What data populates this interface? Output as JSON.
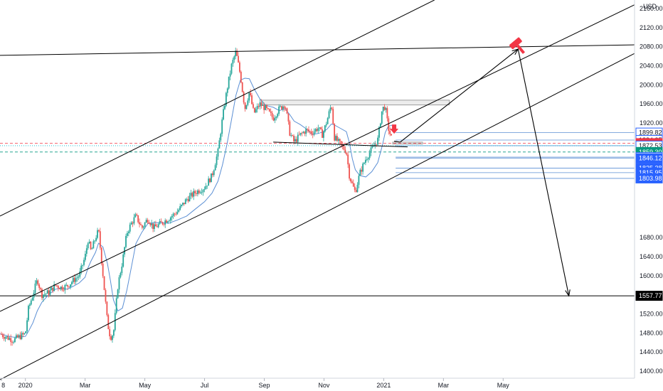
{
  "chart_data": {
    "type": "line",
    "currency_label": "USD",
    "y_ticks": [
      1400,
      1440,
      1480,
      1520,
      1557.77,
      1600,
      1640,
      1680,
      1720,
      1760,
      1800,
      1840,
      1880,
      1920,
      1960,
      2000,
      2040,
      2080,
      2120,
      2160
    ],
    "y_tick_labels": [
      "1400.00",
      "1440.00",
      "1480.00",
      "1520.00",
      "",
      "1600.00",
      "1640.00",
      "1680.00",
      "",
      "",
      "",
      "",
      "",
      "1920.00",
      "1960.00",
      "2000.00",
      "2040.00",
      "2080.00",
      "2120.00",
      "2160.00"
    ],
    "x_ticks": [
      {
        "label": "8",
        "month": -0.8
      },
      {
        "label": "2020",
        "month": 0
      },
      {
        "label": "Mar",
        "month": 2
      },
      {
        "label": "May",
        "month": 4
      },
      {
        "label": "Jul",
        "month": 6
      },
      {
        "label": "Sep",
        "month": 8
      },
      {
        "label": "Nov",
        "month": 10
      },
      {
        "label": "2021",
        "month": 12
      },
      {
        "label": "Mar",
        "month": 14
      },
      {
        "label": "May",
        "month": 16
      }
    ],
    "ylim": [
      1385,
      2178
    ],
    "xlim_months": [
      -0.85,
      20.4
    ],
    "price_series": [
      [
        -0.85,
        1478
      ],
      [
        -0.6,
        1470
      ],
      [
        -0.4,
        1465
      ],
      [
        -0.2,
        1472
      ],
      [
        0,
        1478
      ],
      [
        0.1,
        1530
      ],
      [
        0.25,
        1560
      ],
      [
        0.4,
        1592
      ],
      [
        0.55,
        1560
      ],
      [
        0.8,
        1565
      ],
      [
        1.0,
        1580
      ],
      [
        1.2,
        1575
      ],
      [
        1.4,
        1578
      ],
      [
        1.6,
        1590
      ],
      [
        1.8,
        1600
      ],
      [
        2.0,
        1640
      ],
      [
        2.1,
        1675
      ],
      [
        2.2,
        1650
      ],
      [
        2.35,
        1680
      ],
      [
        2.45,
        1695
      ],
      [
        2.6,
        1600
      ],
      [
        2.75,
        1500
      ],
      [
        2.85,
        1470
      ],
      [
        2.95,
        1480
      ],
      [
        3.1,
        1580
      ],
      [
        3.25,
        1630
      ],
      [
        3.4,
        1690
      ],
      [
        3.55,
        1710
      ],
      [
        3.7,
        1725
      ],
      [
        3.9,
        1700
      ],
      [
        4.1,
        1720
      ],
      [
        4.3,
        1700
      ],
      [
        4.55,
        1710
      ],
      [
        4.8,
        1720
      ],
      [
        5.1,
        1735
      ],
      [
        5.4,
        1760
      ],
      [
        5.7,
        1775
      ],
      [
        6.0,
        1785
      ],
      [
        6.25,
        1810
      ],
      [
        6.45,
        1860
      ],
      [
        6.6,
        1930
      ],
      [
        6.75,
        1990
      ],
      [
        6.9,
        2040
      ],
      [
        7.05,
        2070
      ],
      [
        7.2,
        2020
      ],
      [
        7.35,
        1950
      ],
      [
        7.5,
        1985
      ],
      [
        7.65,
        1940
      ],
      [
        7.85,
        1960
      ],
      [
        8.05,
        1950
      ],
      [
        8.3,
        1930
      ],
      [
        8.5,
        1950
      ],
      [
        8.7,
        1960
      ],
      [
        8.85,
        1900
      ],
      [
        9.0,
        1880
      ],
      [
        9.2,
        1895
      ],
      [
        9.4,
        1905
      ],
      [
        9.6,
        1900
      ],
      [
        9.8,
        1910
      ],
      [
        9.95,
        1895
      ],
      [
        10.1,
        1925
      ],
      [
        10.25,
        1960
      ],
      [
        10.35,
        1890
      ],
      [
        10.55,
        1875
      ],
      [
        10.75,
        1860
      ],
      [
        10.85,
        1810
      ],
      [
        10.95,
        1790
      ],
      [
        11.05,
        1775
      ],
      [
        11.2,
        1815
      ],
      [
        11.4,
        1845
      ],
      [
        11.6,
        1865
      ],
      [
        11.8,
        1885
      ],
      [
        11.95,
        1950
      ],
      [
        12.05,
        1955
      ],
      [
        12.15,
        1910
      ],
      [
        12.3,
        1880
      ]
    ],
    "annotations": {
      "current_price": 1877.79,
      "target_price": 1557.77,
      "price_tags": [
        {
          "label": "1899.82",
          "value": 1899.82,
          "style": "outline-blue"
        },
        {
          "label": "1884.35",
          "value": 1884.35,
          "style": "outline-blue"
        },
        {
          "label": "1877.79",
          "value": 1877.79,
          "style": "red"
        },
        {
          "label": "1872.53",
          "value": 1872.53,
          "style": "outline-blue"
        },
        {
          "label": "1859.30",
          "value": 1859.3,
          "style": "green"
        },
        {
          "label": "1848.45",
          "value": 1848.45,
          "style": "outline-blue"
        },
        {
          "label": "1846.12",
          "value": 1846.12,
          "style": "blue"
        },
        {
          "label": "1825.38",
          "value": 1825.38,
          "style": "blue"
        },
        {
          "label": "1815.95",
          "value": 1815.95,
          "style": "blue"
        },
        {
          "label": "1803.98",
          "value": 1803.98,
          "style": "blue"
        },
        {
          "label": "1557.77",
          "value": 1557.77,
          "style": "black"
        }
      ],
      "trend_lines": [
        {
          "from": [
            -0.85,
            2062
          ],
          "to": [
            20.4,
            2084
          ]
        },
        {
          "from": [
            -0.85,
            1725
          ],
          "to": [
            13.7,
            2178
          ]
        },
        {
          "from": [
            -0.85,
            1525
          ],
          "to": [
            20.4,
            2168
          ]
        },
        {
          "from": [
            -0.85,
            1382
          ],
          "to": [
            20.4,
            2066
          ]
        },
        {
          "from": [
            8.3,
            1880
          ],
          "to": [
            12.8,
            1870
          ]
        }
      ],
      "arrow_path": [
        [
          12.35,
          1882
        ],
        [
          12.55,
          1880
        ],
        [
          16.5,
          2075
        ],
        [
          18.2,
          1557.77
        ]
      ],
      "resistance_zone": {
        "x_from": 7.9,
        "x_to": 14.2,
        "y_from": 1958,
        "y_to": 1968
      },
      "support_zone": {
        "x_from": 12.3,
        "x_to": 13.3,
        "y_from": 1876,
        "y_to": 1880
      }
    },
    "colors": {
      "price_up": "#26a69a",
      "price_down": "#ef5350",
      "moving_average": "#5b8fd4",
      "lines": "#000000",
      "red_tag": "#f23645",
      "green_tag": "#089981",
      "blue_tag": "#2962ff"
    },
    "title": "",
    "xlabel": "",
    "ylabel": ""
  }
}
